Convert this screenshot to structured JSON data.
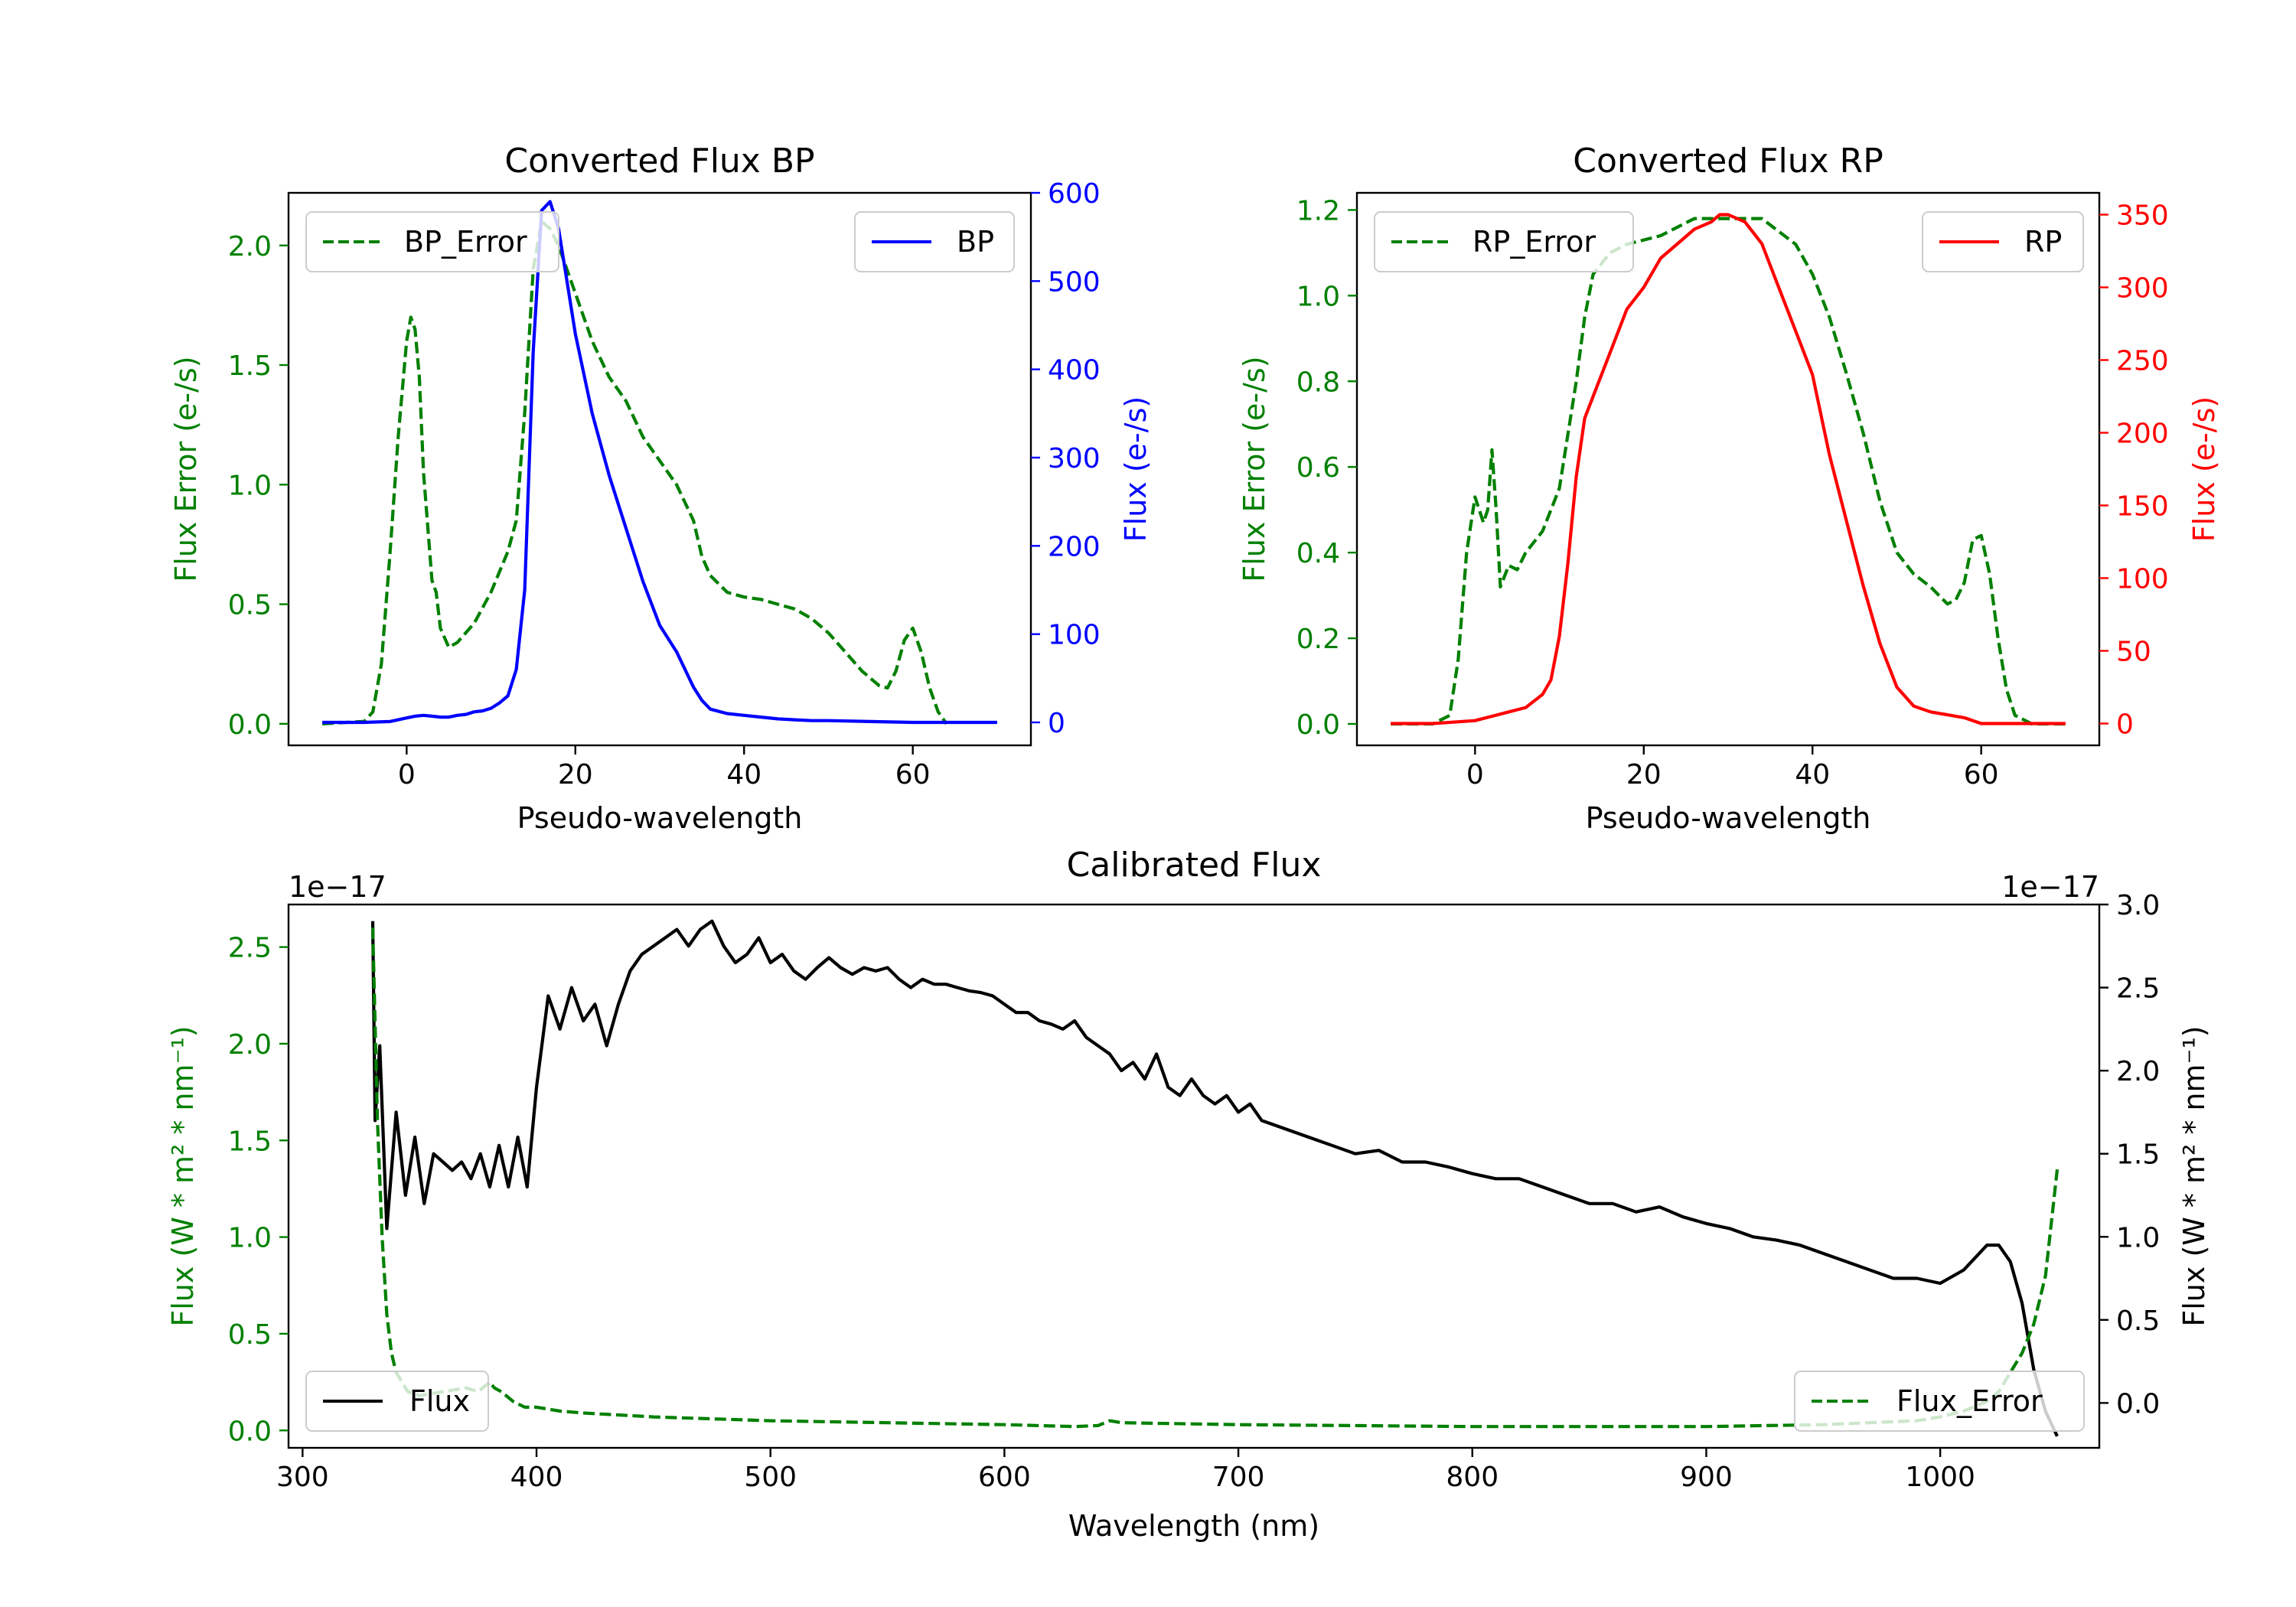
{
  "colors": {
    "green": "#008000",
    "blue": "#0000ff",
    "red": "#ff0000",
    "black": "#000000"
  },
  "chart_data": [
    {
      "type": "line",
      "title": "Converted Flux BP",
      "xlabel": "Pseudo-wavelength",
      "ylabel_left": "Flux Error (e-/s)",
      "ylabel_right": "Flux (e-/s)",
      "xlim": [
        -14,
        74
      ],
      "xticks": [
        0,
        20,
        40,
        60
      ],
      "ylim_left": [
        -0.09,
        2.22
      ],
      "yticks_left": [
        0.0,
        0.5,
        1.0,
        1.5,
        2.0
      ],
      "ylim_right": [
        -26,
        600
      ],
      "yticks_right": [
        0,
        100,
        200,
        300,
        400,
        500,
        600
      ],
      "series": [
        {
          "name": "BP_Error",
          "axis": "left",
          "style": "dashed",
          "color": "#008000",
          "x": [
            -10,
            -5,
            -4,
            -3,
            -2,
            -1,
            0,
            0.5,
            1,
            1.5,
            2,
            3,
            3.5,
            4,
            5,
            6,
            8,
            10,
            12,
            13,
            14,
            15,
            16,
            17,
            18,
            20,
            22,
            24,
            26,
            28,
            30,
            32,
            34,
            35,
            36,
            38,
            40,
            42,
            44,
            46,
            48,
            50,
            52,
            54,
            56,
            57,
            58,
            59,
            60,
            61,
            62,
            63,
            64
          ],
          "values": [
            0.0,
            0.01,
            0.05,
            0.25,
            0.7,
            1.2,
            1.6,
            1.7,
            1.65,
            1.45,
            1.05,
            0.6,
            0.55,
            0.4,
            0.32,
            0.34,
            0.42,
            0.55,
            0.72,
            0.85,
            1.3,
            1.9,
            2.1,
            2.07,
            2.0,
            1.8,
            1.6,
            1.45,
            1.35,
            1.2,
            1.1,
            1.0,
            0.85,
            0.7,
            0.62,
            0.55,
            0.53,
            0.52,
            0.5,
            0.48,
            0.44,
            0.38,
            0.3,
            0.22,
            0.16,
            0.15,
            0.22,
            0.35,
            0.4,
            0.3,
            0.15,
            0.05,
            0.0
          ]
        },
        {
          "name": "BP",
          "axis": "right",
          "style": "solid",
          "color": "#0000ff",
          "x": [
            -10,
            -5,
            -2,
            0,
            1,
            2,
            3,
            4,
            5,
            6,
            7,
            8,
            9,
            10,
            11,
            12,
            13,
            14,
            15,
            16,
            17,
            18,
            19,
            20,
            22,
            24,
            26,
            28,
            30,
            32,
            34,
            35,
            36,
            38,
            40,
            42,
            44,
            46,
            48,
            50,
            55,
            60,
            65,
            70
          ],
          "values": [
            0,
            0,
            1,
            5,
            7,
            8,
            7,
            6,
            6,
            8,
            9,
            12,
            13,
            16,
            22,
            30,
            60,
            150,
            420,
            580,
            590,
            560,
            500,
            440,
            350,
            280,
            220,
            160,
            110,
            80,
            40,
            25,
            15,
            10,
            8,
            6,
            4,
            3,
            2,
            2,
            1,
            0,
            0,
            0
          ]
        }
      ],
      "legend": [
        {
          "label": "BP_Error",
          "loc": "upper left"
        },
        {
          "label": "BP",
          "loc": "upper right"
        }
      ]
    },
    {
      "type": "line",
      "title": "Converted Flux RP",
      "xlabel": "Pseudo-wavelength",
      "ylabel_left": "Flux Error (e-/s)",
      "ylabel_right": "Flux (e-/s)",
      "xlim": [
        -14,
        74
      ],
      "xticks": [
        0,
        20,
        40,
        60
      ],
      "ylim_left": [
        -0.05,
        1.24
      ],
      "yticks_left": [
        0.0,
        0.2,
        0.4,
        0.6,
        0.8,
        1.0,
        1.2
      ],
      "ylim_right": [
        -15,
        365
      ],
      "yticks_right": [
        0,
        50,
        100,
        150,
        200,
        250,
        300,
        350
      ],
      "series": [
        {
          "name": "RP_Error",
          "axis": "left",
          "style": "dashed",
          "color": "#008000",
          "x": [
            -10,
            -5,
            -3,
            -2,
            -1,
            0,
            1,
            1.5,
            2,
            2.5,
            3,
            4,
            5,
            6,
            8,
            10,
            12,
            13,
            14,
            16,
            18,
            20,
            22,
            24,
            26,
            28,
            30,
            32,
            34,
            36,
            38,
            40,
            42,
            44,
            46,
            48,
            50,
            52,
            54,
            56,
            57,
            58,
            59,
            60,
            61,
            62,
            63,
            64,
            66,
            70
          ],
          "values": [
            0,
            0,
            0.02,
            0.15,
            0.4,
            0.53,
            0.47,
            0.5,
            0.64,
            0.5,
            0.32,
            0.37,
            0.36,
            0.4,
            0.45,
            0.55,
            0.8,
            0.95,
            1.05,
            1.1,
            1.12,
            1.13,
            1.14,
            1.16,
            1.18,
            1.18,
            1.18,
            1.18,
            1.18,
            1.15,
            1.12,
            1.05,
            0.95,
            0.82,
            0.68,
            0.52,
            0.4,
            0.35,
            0.32,
            0.28,
            0.29,
            0.33,
            0.43,
            0.44,
            0.35,
            0.2,
            0.08,
            0.02,
            0,
            0
          ]
        },
        {
          "name": "RP",
          "axis": "right",
          "style": "solid",
          "color": "#ff0000",
          "x": [
            -10,
            -5,
            0,
            2,
            4,
            6,
            8,
            9,
            10,
            11,
            12,
            13,
            14,
            16,
            18,
            20,
            22,
            24,
            26,
            28,
            29,
            30,
            32,
            34,
            36,
            38,
            40,
            42,
            44,
            46,
            48,
            50,
            52,
            54,
            56,
            58,
            60,
            65,
            70
          ],
          "values": [
            0,
            0,
            2,
            5,
            8,
            11,
            20,
            30,
            60,
            110,
            170,
            210,
            225,
            255,
            285,
            300,
            320,
            330,
            340,
            345,
            350,
            350,
            345,
            330,
            300,
            270,
            240,
            185,
            140,
            95,
            55,
            25,
            12,
            8,
            6,
            4,
            0,
            0,
            0
          ]
        }
      ],
      "legend": [
        {
          "label": "RP_Error",
          "loc": "upper left"
        },
        {
          "label": "RP",
          "loc": "upper right"
        }
      ]
    },
    {
      "type": "line",
      "title": "Calibrated Flux",
      "xlabel": "Wavelength (nm)",
      "ylabel_left": "Flux (W * m² * nm⁻¹)",
      "ylabel_right": "Flux (W * m² * nm⁻¹)",
      "offset_left": "1e−17",
      "offset_right": "1e−17",
      "xlim": [
        294,
        1068
      ],
      "xticks": [
        300,
        400,
        500,
        600,
        700,
        800,
        900,
        1000
      ],
      "ylim_left": [
        -0.09,
        2.72
      ],
      "yticks_left": [
        0.0,
        0.5,
        1.0,
        1.5,
        2.0,
        2.5
      ],
      "ylim_right": [
        -0.27,
        3.0
      ],
      "yticks_right": [
        0.0,
        0.5,
        1.0,
        1.5,
        2.0,
        2.5,
        3.0
      ],
      "series": [
        {
          "name": "Flux",
          "axis": "right",
          "style": "solid",
          "color": "#000000",
          "x": [
            330,
            331,
            333,
            336,
            340,
            344,
            348,
            352,
            356,
            360,
            364,
            368,
            372,
            376,
            380,
            384,
            388,
            392,
            396,
            400,
            405,
            410,
            415,
            420,
            425,
            430,
            435,
            440,
            445,
            450,
            455,
            460,
            465,
            470,
            475,
            480,
            485,
            490,
            495,
            500,
            505,
            510,
            515,
            520,
            525,
            530,
            535,
            540,
            545,
            550,
            555,
            560,
            565,
            570,
            575,
            580,
            585,
            590,
            595,
            600,
            605,
            610,
            615,
            620,
            625,
            630,
            635,
            640,
            645,
            650,
            655,
            660,
            665,
            670,
            675,
            680,
            685,
            690,
            695,
            700,
            705,
            710,
            720,
            730,
            740,
            750,
            760,
            770,
            780,
            790,
            800,
            810,
            820,
            830,
            840,
            850,
            860,
            870,
            880,
            890,
            900,
            910,
            920,
            930,
            940,
            950,
            960,
            970,
            980,
            990,
            1000,
            1010,
            1020,
            1025,
            1030,
            1035,
            1040,
            1045,
            1050
          ],
          "values": [
            2.9,
            1.7,
            2.15,
            1.05,
            1.75,
            1.25,
            1.6,
            1.2,
            1.5,
            1.45,
            1.4,
            1.45,
            1.35,
            1.5,
            1.3,
            1.55,
            1.3,
            1.6,
            1.3,
            1.9,
            2.45,
            2.25,
            2.5,
            2.3,
            2.4,
            2.15,
            2.4,
            2.6,
            2.7,
            2.75,
            2.8,
            2.85,
            2.75,
            2.85,
            2.9,
            2.75,
            2.65,
            2.7,
            2.8,
            2.65,
            2.7,
            2.6,
            2.55,
            2.62,
            2.68,
            2.62,
            2.58,
            2.62,
            2.6,
            2.62,
            2.55,
            2.5,
            2.55,
            2.52,
            2.52,
            2.5,
            2.48,
            2.47,
            2.45,
            2.4,
            2.35,
            2.35,
            2.3,
            2.28,
            2.25,
            2.3,
            2.2,
            2.15,
            2.1,
            2.0,
            2.05,
            1.95,
            2.1,
            1.9,
            1.85,
            1.95,
            1.85,
            1.8,
            1.85,
            1.75,
            1.8,
            1.7,
            1.65,
            1.6,
            1.55,
            1.5,
            1.52,
            1.45,
            1.45,
            1.42,
            1.38,
            1.35,
            1.35,
            1.3,
            1.25,
            1.2,
            1.2,
            1.15,
            1.18,
            1.12,
            1.08,
            1.05,
            1.0,
            0.98,
            0.95,
            0.9,
            0.85,
            0.8,
            0.75,
            0.75,
            0.72,
            0.8,
            0.95,
            0.95,
            0.85,
            0.6,
            0.2,
            -0.05,
            -0.2
          ]
        },
        {
          "name": "Flux_Error",
          "axis": "left",
          "style": "dashed",
          "color": "#008000",
          "x": [
            330,
            332,
            334,
            336,
            338,
            340,
            345,
            350,
            360,
            370,
            375,
            380,
            382,
            385,
            390,
            395,
            400,
            410,
            420,
            450,
            500,
            550,
            600,
            630,
            640,
            645,
            650,
            700,
            800,
            900,
            950,
            990,
            1000,
            1010,
            1020,
            1025,
            1030,
            1035,
            1040,
            1045,
            1050
          ],
          "values": [
            2.6,
            1.6,
            1.0,
            0.6,
            0.4,
            0.3,
            0.2,
            0.18,
            0.2,
            0.22,
            0.2,
            0.25,
            0.22,
            0.2,
            0.15,
            0.12,
            0.12,
            0.1,
            0.09,
            0.07,
            0.05,
            0.04,
            0.03,
            0.02,
            0.025,
            0.05,
            0.04,
            0.03,
            0.02,
            0.02,
            0.03,
            0.05,
            0.07,
            0.1,
            0.15,
            0.2,
            0.3,
            0.4,
            0.55,
            0.8,
            1.35
          ]
        }
      ],
      "legend": [
        {
          "label": "Flux",
          "loc": "lower left"
        },
        {
          "label": "Flux_Error",
          "loc": "lower right"
        }
      ]
    }
  ]
}
